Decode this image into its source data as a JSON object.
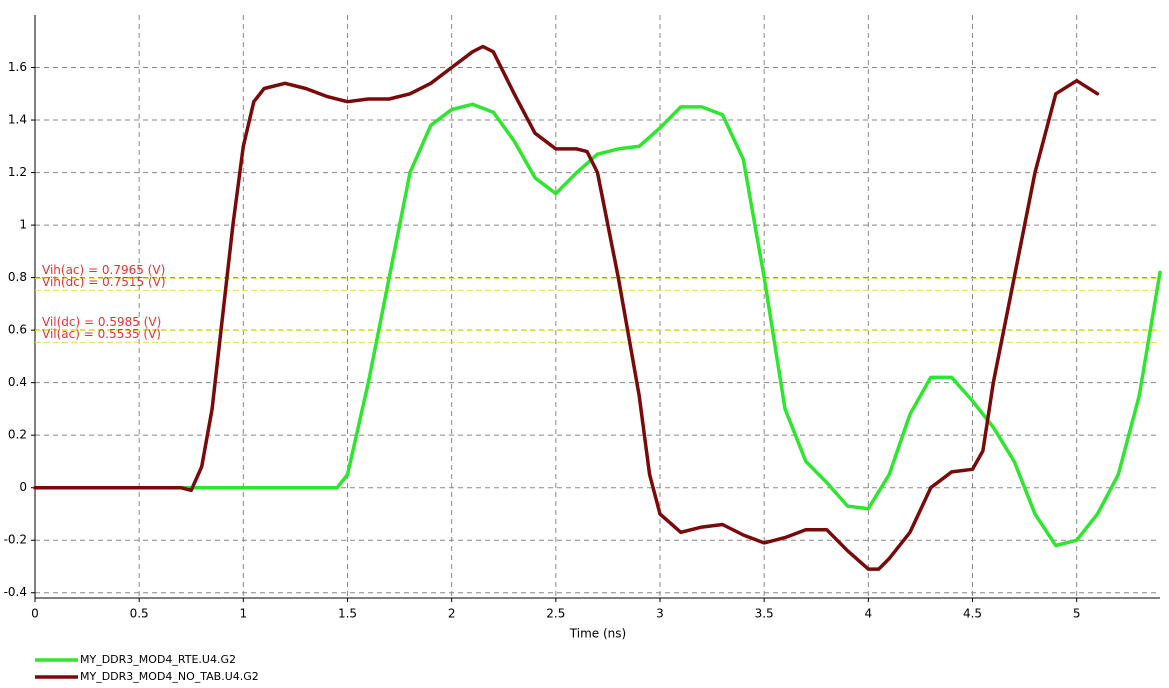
{
  "chart_data": {
    "type": "line",
    "x_label": "Time (ns)",
    "xlim": [
      0,
      5.4
    ],
    "xticks": [
      0,
      0.5,
      1,
      1.5,
      2,
      2.5,
      3,
      3.5,
      4,
      4.5,
      5
    ],
    "ylim": [
      -0.42,
      1.8
    ],
    "yticks": [
      -0.4,
      -0.2,
      0,
      0.2,
      0.4,
      0.6,
      0.8,
      1,
      1.2,
      1.4,
      1.6
    ],
    "grid": true,
    "legend": "bottom-left",
    "thresholds": [
      {
        "label": "Vih(ac) = 0.7965 (V)",
        "value": 0.7965
      },
      {
        "label": "Vih(dc) = 0.7515 (V)",
        "value": 0.7515
      },
      {
        "label": "Vil(dc) = 0.5985 (V)",
        "value": 0.5985
      },
      {
        "label": "Vil(ac) = 0.5535 (V)",
        "value": 0.5535
      }
    ],
    "threshold_color": "#e6e04a",
    "threshold_label_color": "#e03434",
    "series": [
      {
        "name": "MY_DDR3_MOD4_RTE.U4.G2",
        "color": "#2ee62e",
        "x": [
          0,
          1.4,
          1.45,
          1.5,
          1.6,
          1.7,
          1.8,
          1.9,
          2.0,
          2.1,
          2.2,
          2.3,
          2.4,
          2.5,
          2.6,
          2.7,
          2.8,
          2.9,
          3.0,
          3.1,
          3.2,
          3.3,
          3.4,
          3.5,
          3.6,
          3.7,
          3.8,
          3.9,
          4.0,
          4.1,
          4.2,
          4.3,
          4.4,
          4.5,
          4.6,
          4.7,
          4.8,
          4.9,
          5.0,
          5.1,
          5.2,
          5.3,
          5.4
        ],
        "values": [
          0,
          0,
          0,
          0.05,
          0.4,
          0.8,
          1.2,
          1.38,
          1.44,
          1.46,
          1.43,
          1.32,
          1.18,
          1.12,
          1.2,
          1.27,
          1.29,
          1.3,
          1.37,
          1.45,
          1.45,
          1.42,
          1.25,
          0.8,
          0.3,
          0.1,
          0.02,
          -0.07,
          -0.08,
          0.05,
          0.28,
          0.42,
          0.42,
          0.33,
          0.23,
          0.1,
          -0.1,
          -0.22,
          -0.2,
          -0.1,
          0.05,
          0.35,
          0.82
        ]
      },
      {
        "name": "MY_DDR3_MOD4_NO_TAB.U4.G2",
        "color": "#7a0a0a",
        "x": [
          0,
          0.7,
          0.75,
          0.8,
          0.85,
          0.9,
          0.95,
          1.0,
          1.05,
          1.1,
          1.2,
          1.3,
          1.4,
          1.5,
          1.6,
          1.7,
          1.8,
          1.9,
          2.0,
          2.1,
          2.15,
          2.2,
          2.3,
          2.4,
          2.5,
          2.6,
          2.65,
          2.7,
          2.8,
          2.9,
          2.95,
          3.0,
          3.1,
          3.2,
          3.3,
          3.4,
          3.5,
          3.6,
          3.7,
          3.8,
          3.9,
          4.0,
          4.05,
          4.1,
          4.2,
          4.3,
          4.4,
          4.5,
          4.55,
          4.6,
          4.7,
          4.8,
          4.9,
          5.0,
          5.1
        ],
        "values": [
          0,
          0,
          -0.01,
          0.08,
          0.3,
          0.65,
          1.0,
          1.3,
          1.47,
          1.52,
          1.54,
          1.52,
          1.49,
          1.47,
          1.48,
          1.48,
          1.5,
          1.54,
          1.6,
          1.66,
          1.68,
          1.66,
          1.5,
          1.35,
          1.29,
          1.29,
          1.28,
          1.2,
          0.8,
          0.35,
          0.05,
          -0.1,
          -0.17,
          -0.15,
          -0.14,
          -0.18,
          -0.21,
          -0.19,
          -0.16,
          -0.16,
          -0.24,
          -0.31,
          -0.31,
          -0.27,
          -0.17,
          0.0,
          0.06,
          0.07,
          0.14,
          0.4,
          0.8,
          1.2,
          1.5,
          1.55,
          1.5
        ]
      }
    ]
  }
}
